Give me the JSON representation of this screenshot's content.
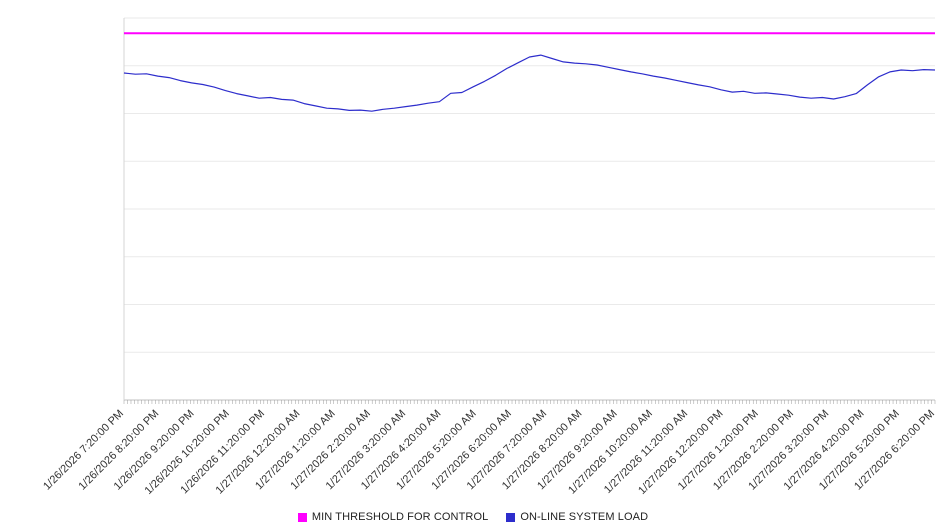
{
  "chart_data": {
    "type": "line",
    "title": "",
    "xlabel": "",
    "ylabel": "",
    "ylim": [
      0,
      100
    ],
    "grid": true,
    "legend_position": "bottom",
    "x_labels": [
      "1/26/2026 7:20:00 PM",
      "1/26/2026 8:20:00 PM",
      "1/26/2026 9:20:00 PM",
      "1/26/2026 10:20:00 PM",
      "1/26/2026 11:20:00 PM",
      "1/27/2026 12:20:00 AM",
      "1/27/2026 1:20:00 AM",
      "1/27/2026 2:20:00 AM",
      "1/27/2026 3:20:00 AM",
      "1/27/2026 4:20:00 AM",
      "1/27/2026 5:20:00 AM",
      "1/27/2026 6:20:00 AM",
      "1/27/2026 7:20:00 AM",
      "1/27/2026 8:20:00 AM",
      "1/27/2026 9:20:00 AM",
      "1/27/2026 10:20:00 AM",
      "1/27/2026 11:20:00 AM",
      "1/27/2026 12:20:00 PM",
      "1/27/2026 1:20:00 PM",
      "1/27/2026 2:20:00 PM",
      "1/27/2026 3:20:00 PM",
      "1/27/2026 4:20:00 PM",
      "1/27/2026 5:20:00 PM",
      "1/27/2026 6:20:00 PM"
    ],
    "series": [
      {
        "name": "MIN THRESHOLD FOR CONTROL",
        "color": "#ff00ff",
        "value": 96
      },
      {
        "name": "ON-LINE SYSTEM LOAD",
        "color": "#2d2dcc",
        "values": [
          85.6,
          85.3,
          85.4,
          84.8,
          84.4,
          83.6,
          83.0,
          82.6,
          81.9,
          81.0,
          80.2,
          79.6,
          79.0,
          79.2,
          78.7,
          78.5,
          77.6,
          77.0,
          76.4,
          76.2,
          75.8,
          75.9,
          75.6,
          76.1,
          76.4,
          76.8,
          77.2,
          77.7,
          78.1,
          80.3,
          80.5,
          82.0,
          83.4,
          85.0,
          86.8,
          88.3,
          89.8,
          90.3,
          89.4,
          88.5,
          88.2,
          88.0,
          87.7,
          87.1,
          86.5,
          85.9,
          85.4,
          84.8,
          84.3,
          83.7,
          83.1,
          82.5,
          82.0,
          81.2,
          80.6,
          80.8,
          80.3,
          80.4,
          80.1,
          79.8,
          79.3,
          79.0,
          79.2,
          78.8,
          79.4,
          80.2,
          82.5,
          84.6,
          85.9,
          86.4,
          86.2,
          86.5,
          86.4
        ]
      }
    ]
  }
}
